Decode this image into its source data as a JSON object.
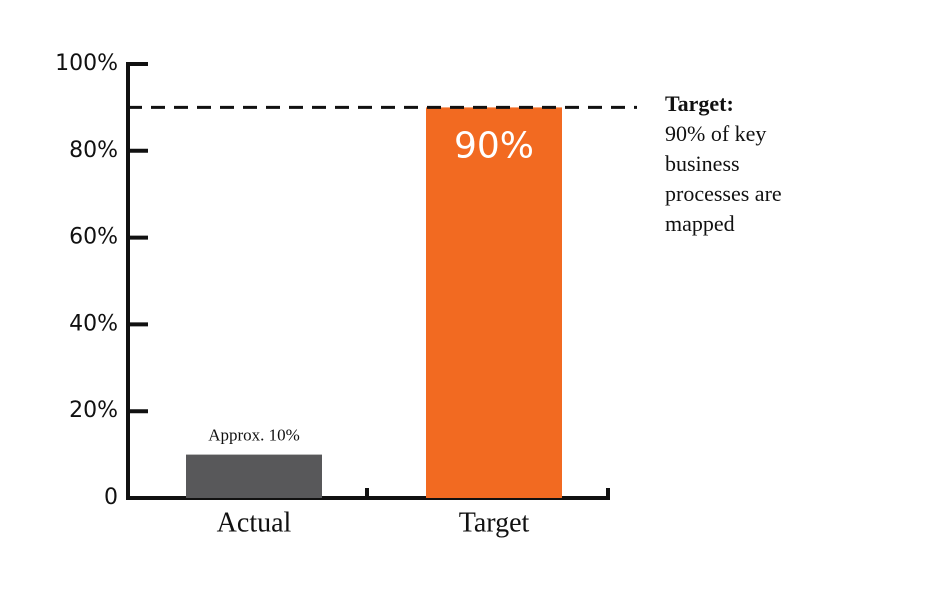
{
  "chart_data": {
    "type": "bar",
    "categories": [
      "Actual",
      "Target"
    ],
    "values": [
      10,
      90
    ],
    "value_labels": [
      "Approx. 10%",
      "90%"
    ],
    "colors": [
      "#58585a",
      "#f26a21"
    ],
    "ylim": [
      0,
      100
    ],
    "yticks": [
      0,
      {
        "value": 20,
        "label": "20%"
      },
      {
        "value": 40,
        "label": "40%"
      },
      {
        "value": 60,
        "label": "60%"
      },
      {
        "value": 80,
        "label": "80%"
      },
      {
        "value": 100,
        "label": "100%"
      }
    ],
    "reference_line": 90,
    "annotation": {
      "title": "Target:",
      "lines": [
        "90% of key",
        "business",
        "processes are",
        "mapped"
      ]
    },
    "grid": false
  }
}
